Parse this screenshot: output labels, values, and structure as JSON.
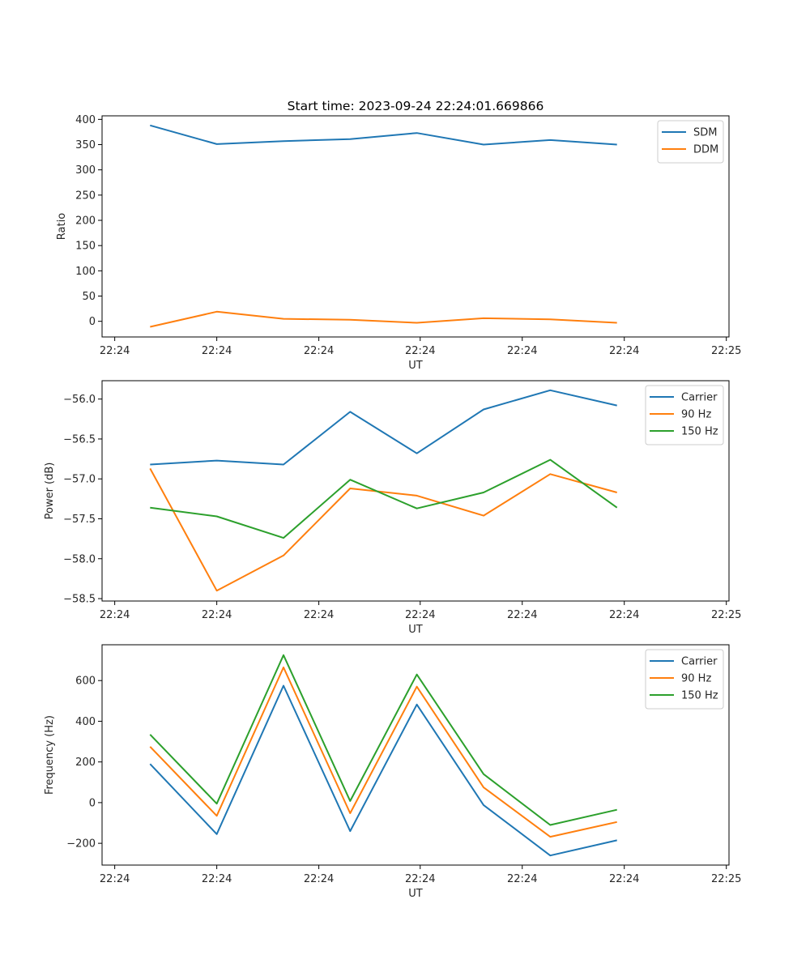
{
  "figure": {
    "title": "Start time: 2023-09-24 22:24:01.669866"
  },
  "chart_data": [
    {
      "type": "line",
      "title": "Start time: 2023-09-24 22:24:01.669866",
      "xlabel": "UT",
      "ylabel": "Ratio",
      "x": [
        1,
        2,
        3,
        4,
        5,
        6,
        7,
        8
      ],
      "xlim": [
        0.28,
        9.68
      ],
      "xticks": [
        0.47,
        2.0,
        3.53,
        5.05,
        6.58,
        8.11,
        9.64
      ],
      "xtick_labels": [
        "22:24",
        "22:24",
        "22:24",
        "22:24",
        "22:24",
        "22:24",
        "22:25"
      ],
      "ylim": [
        -31,
        407
      ],
      "yticks": [
        0,
        50,
        100,
        150,
        200,
        250,
        300,
        350,
        400
      ],
      "ytick_labels": [
        "0",
        "50",
        "100",
        "150",
        "200",
        "250",
        "300",
        "350",
        "400"
      ],
      "grid": false,
      "legend": "top-right",
      "series": [
        {
          "name": "SDM",
          "color": "#1f77b4",
          "values": [
            388,
            351,
            357,
            361,
            373,
            350,
            359,
            350
          ]
        },
        {
          "name": "DDM",
          "color": "#ff7f0e",
          "values": [
            -11,
            19,
            5,
            3,
            -3,
            6,
            4,
            -3
          ]
        }
      ]
    },
    {
      "type": "line",
      "title": "",
      "xlabel": "UT",
      "ylabel": "Power (dB)",
      "x": [
        1,
        2,
        3,
        4,
        5,
        6,
        7,
        8
      ],
      "xlim": [
        0.28,
        9.68
      ],
      "xticks": [
        0.47,
        2.0,
        3.53,
        5.05,
        6.58,
        8.11,
        9.64
      ],
      "xtick_labels": [
        "22:24",
        "22:24",
        "22:24",
        "22:24",
        "22:24",
        "22:24",
        "22:25"
      ],
      "ylim": [
        -58.53,
        -55.77
      ],
      "yticks": [
        -58.5,
        -58.0,
        -57.5,
        -57.0,
        -56.5,
        -56.0
      ],
      "ytick_labels": [
        "−58.5",
        "−58.0",
        "−57.5",
        "−57.0",
        "−56.5",
        "−56.0"
      ],
      "grid": false,
      "legend": "top-right",
      "series": [
        {
          "name": "Carrier",
          "color": "#1f77b4",
          "values": [
            -56.82,
            -56.77,
            -56.82,
            -56.16,
            -56.68,
            -56.13,
            -55.89,
            -56.08
          ]
        },
        {
          "name": "90 Hz",
          "color": "#ff7f0e",
          "values": [
            -56.87,
            -58.4,
            -57.96,
            -57.12,
            -57.21,
            -57.46,
            -56.94,
            -57.17
          ]
        },
        {
          "name": "150 Hz",
          "color": "#2ca02c",
          "values": [
            -57.36,
            -57.47,
            -57.74,
            -57.01,
            -57.37,
            -57.17,
            -56.76,
            -57.36
          ]
        }
      ]
    },
    {
      "type": "line",
      "title": "",
      "xlabel": "UT",
      "ylabel": "Frequency (Hz)",
      "x": [
        1,
        2,
        3,
        4,
        5,
        6,
        7,
        8
      ],
      "xlim": [
        0.28,
        9.68
      ],
      "xticks": [
        0.47,
        2.0,
        3.53,
        5.05,
        6.58,
        8.11,
        9.64
      ],
      "xtick_labels": [
        "22:24",
        "22:24",
        "22:24",
        "22:24",
        "22:24",
        "22:24",
        "22:25"
      ],
      "ylim": [
        -307,
        776
      ],
      "yticks": [
        -200,
        0,
        200,
        400,
        600
      ],
      "ytick_labels": [
        "−200",
        "0",
        "200",
        "400",
        "600"
      ],
      "grid": false,
      "legend": "top-right",
      "series": [
        {
          "name": "Carrier",
          "color": "#1f77b4",
          "values": [
            190,
            -155,
            575,
            -140,
            482,
            -12,
            -260,
            -185
          ]
        },
        {
          "name": "90 Hz",
          "color": "#ff7f0e",
          "values": [
            275,
            -65,
            665,
            -52,
            570,
            75,
            -168,
            -95
          ]
        },
        {
          "name": "150 Hz",
          "color": "#2ca02c",
          "values": [
            335,
            -5,
            725,
            8,
            630,
            140,
            -110,
            -35
          ]
        }
      ]
    }
  ]
}
